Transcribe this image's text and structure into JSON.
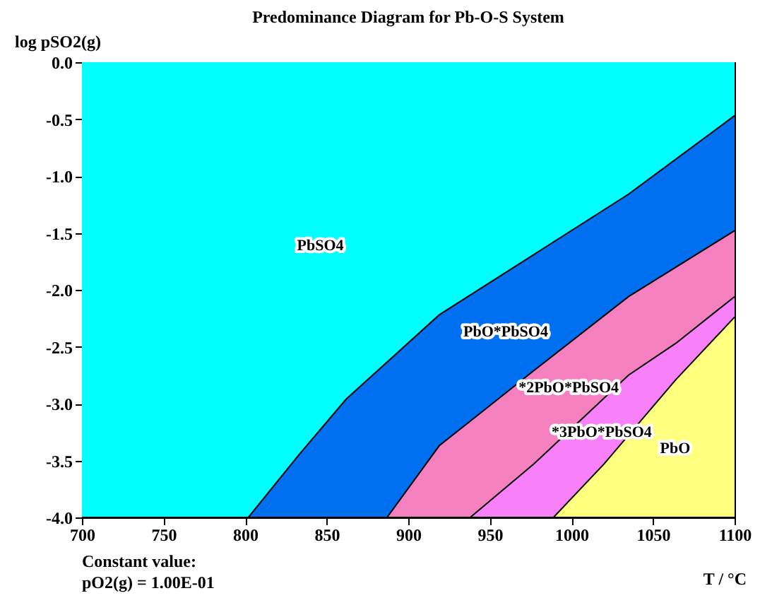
{
  "chart_data": {
    "type": "area",
    "title": "Predominance Diagram for Pb-O-S System",
    "xlabel": "T / °C",
    "ylabel": "log pSO2(g)",
    "xlim": [
      700,
      1100
    ],
    "ylim": [
      -4,
      0
    ],
    "xticks": [
      700,
      750,
      800,
      850,
      900,
      950,
      1000,
      1050,
      1100
    ],
    "yticks": [
      {
        "value": -4,
        "label": "-4.0"
      },
      {
        "value": -3.5,
        "label": "-3.5"
      },
      {
        "value": -3,
        "label": "-3.0"
      },
      {
        "value": -2.5,
        "label": "-2.5"
      },
      {
        "value": -2,
        "label": "-2.0"
      },
      {
        "value": -1.5,
        "label": "-1.5"
      },
      {
        "value": -1,
        "label": "-1.0"
      },
      {
        "value": -0.5,
        "label": "-0.5"
      },
      {
        "value": 0,
        "label": "0.0"
      }
    ],
    "grid": false,
    "series": [
      {
        "name": "PbO",
        "color": "#ffff80",
        "x": [
          989,
          1100
        ],
        "values": [
          -4,
          -4
        ]
      },
      {
        "name": "*3PbO*PbSO4",
        "color": "#f880f8",
        "x": [
          938,
          989,
          1020,
          1064,
          1100
        ],
        "values": [
          -4,
          -4,
          -3.53,
          -2.79,
          -2.24
        ]
      },
      {
        "name": "*2PbO*PbSO4",
        "color": "#f580c0",
        "x": [
          887,
          938,
          977,
          1035,
          1064,
          1100
        ],
        "values": [
          -4,
          -4,
          -3.53,
          -2.75,
          -2.47,
          -2.06
        ]
      },
      {
        "name": "PbO*PbSO4",
        "color": "#0070f0",
        "x": [
          802,
          887,
          919,
          948,
          977,
          1035,
          1100
        ],
        "values": [
          -4,
          -4,
          -3.37,
          -3.04,
          -2.71,
          -2.06,
          -1.48
        ]
      },
      {
        "name": "PbSO4",
        "color": "#00ffff",
        "x": [
          700,
          802,
          833,
          862,
          919,
          977,
          1035,
          1100
        ],
        "values": [
          -4,
          -4,
          -3.45,
          -2.96,
          -2.22,
          -1.69,
          -1.16,
          -0.47
        ]
      }
    ],
    "annotations": [
      "Constant value:\npO2(g) = 1.00E-01"
    ]
  }
}
